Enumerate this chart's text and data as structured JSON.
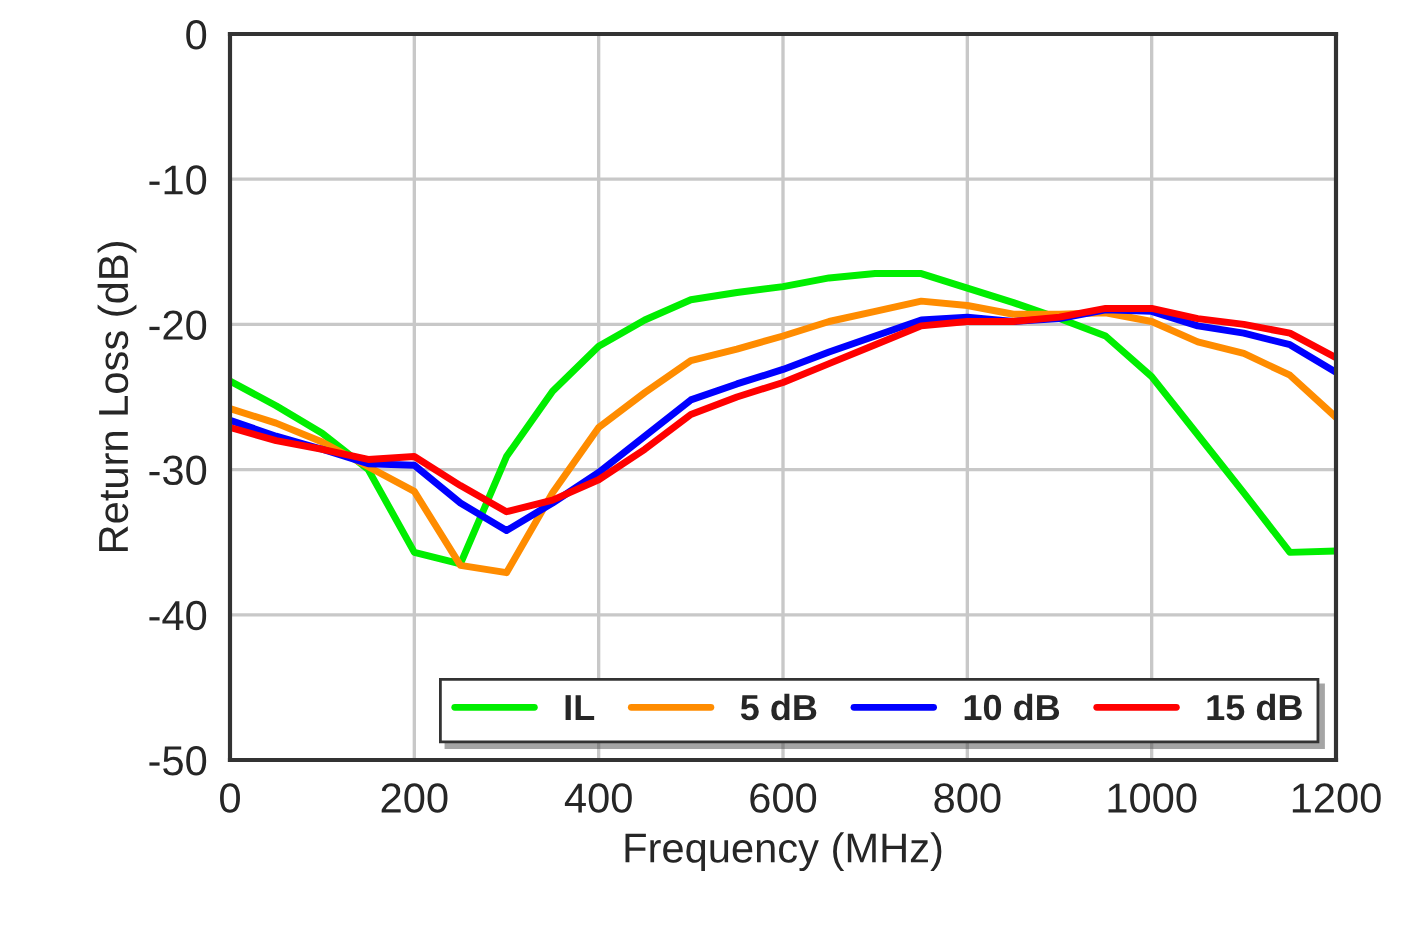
{
  "chart_data": {
    "type": "line",
    "xlabel": "Frequency (MHz)",
    "ylabel": "Return Loss (dB)",
    "x": [
      0,
      50,
      100,
      150,
      200,
      250,
      300,
      350,
      400,
      450,
      500,
      550,
      600,
      650,
      700,
      750,
      800,
      850,
      900,
      950,
      1000,
      1050,
      1100,
      1150,
      1200
    ],
    "series": [
      {
        "name": "IL",
        "color": "#00ee00",
        "values": [
          -23.9,
          -25.6,
          -27.5,
          -30.0,
          -35.7,
          -36.5,
          -29.1,
          -24.6,
          -21.5,
          -19.7,
          -18.3,
          -17.8,
          -17.4,
          -16.8,
          -16.5,
          -16.5,
          -17.5,
          -18.5,
          -19.6,
          -20.8,
          -23.6,
          -27.6,
          -31.6,
          -35.7,
          -35.6
        ]
      },
      {
        "name": "5 dB",
        "color": "#ff8c00",
        "values": [
          -25.8,
          -26.8,
          -28.1,
          -29.8,
          -31.5,
          -36.6,
          -37.1,
          -31.6,
          -27.1,
          -24.7,
          -22.5,
          -21.7,
          -20.8,
          -19.8,
          -19.1,
          -18.4,
          -18.7,
          -19.3,
          -19.3,
          -19.2,
          -19.8,
          -21.2,
          -22.0,
          -23.5,
          -26.4
        ]
      },
      {
        "name": "10 dB",
        "color": "#0000ff",
        "values": [
          -26.6,
          -27.7,
          -28.6,
          -29.6,
          -29.7,
          -32.3,
          -34.2,
          -32.3,
          -30.2,
          -27.7,
          -25.2,
          -24.1,
          -23.1,
          -21.9,
          -20.8,
          -19.7,
          -19.5,
          -19.8,
          -19.6,
          -19.0,
          -19.1,
          -20.1,
          -20.6,
          -21.4,
          -23.3
        ]
      },
      {
        "name": "15 dB",
        "color": "#ff0000",
        "values": [
          -27.1,
          -28.0,
          -28.6,
          -29.3,
          -29.1,
          -31.1,
          -32.9,
          -32.1,
          -30.7,
          -28.6,
          -26.2,
          -25.0,
          -24.0,
          -22.7,
          -21.4,
          -20.1,
          -19.8,
          -19.8,
          -19.5,
          -18.9,
          -18.9,
          -19.6,
          -20.0,
          -20.6,
          -22.3
        ]
      }
    ],
    "xlim": [
      0,
      1200
    ],
    "xticks": [
      0,
      200,
      400,
      600,
      800,
      1000,
      1200
    ],
    "ylim": [
      -50,
      0
    ],
    "yticks": [
      -50,
      -40,
      -30,
      -20,
      -10,
      0
    ],
    "grid": true,
    "legend": "bottom right",
    "marker": "none",
    "line_style": "solid"
  }
}
